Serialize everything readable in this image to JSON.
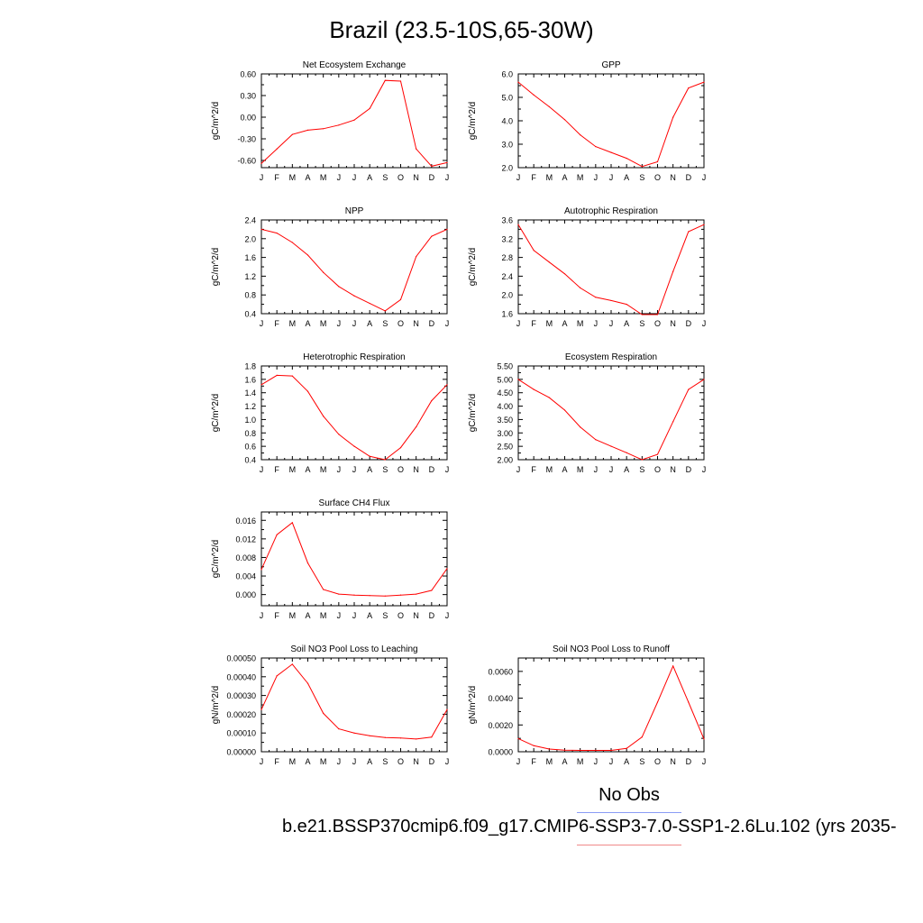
{
  "figure": {
    "title": "Brazil (23.5-10S,65-30W)",
    "legend_obs": "No Obs",
    "case_label": "b.e21.BSSP370cmip6.f09_g17.CMIP6-SSP3-7.0-SSP1-2.6Lu.102 (yrs 2035-",
    "obs_color": "#8a9cf5",
    "case_color": "#f08a8a",
    "series_color": "#ff0000"
  },
  "chart_data": [
    {
      "type": "line",
      "title": "Net Ecosystem Exchange",
      "ylabel": "gC/m^2/d",
      "x": [
        "J",
        "F",
        "M",
        "A",
        "M",
        "J",
        "J",
        "A",
        "S",
        "O",
        "N",
        "D",
        "J"
      ],
      "ylim": [
        -0.7,
        0.6
      ],
      "yticks": [
        0.6,
        0.3,
        0.0,
        -0.3,
        -0.6
      ],
      "ytick_labels": [
        "0.60",
        "0.30",
        "0.00",
        "-0.30",
        "-0.60"
      ],
      "values": [
        -0.64,
        -0.44,
        -0.24,
        -0.18,
        -0.16,
        -0.11,
        -0.04,
        0.12,
        0.51,
        0.5,
        -0.44,
        -0.68,
        -0.63
      ]
    },
    {
      "type": "line",
      "title": "GPP",
      "ylabel": "gC/m^2/d",
      "x": [
        "J",
        "F",
        "M",
        "A",
        "M",
        "J",
        "J",
        "A",
        "S",
        "O",
        "N",
        "D",
        "J"
      ],
      "ylim": [
        2.0,
        6.0
      ],
      "yticks": [
        6.0,
        5.0,
        4.0,
        3.0,
        2.0
      ],
      "ytick_labels": [
        "6.0",
        "5.0",
        "4.0",
        "3.0",
        "2.0"
      ],
      "values": [
        5.65,
        5.1,
        4.6,
        4.05,
        3.4,
        2.9,
        2.65,
        2.4,
        2.05,
        2.25,
        4.15,
        5.4,
        5.65
      ]
    },
    {
      "type": "line",
      "title": "NPP",
      "ylabel": "gC/m^2/d",
      "x": [
        "J",
        "F",
        "M",
        "A",
        "M",
        "J",
        "J",
        "A",
        "S",
        "O",
        "N",
        "D",
        "J"
      ],
      "ylim": [
        0.4,
        2.4
      ],
      "yticks": [
        2.4,
        2.0,
        1.6,
        1.2,
        0.8,
        0.4
      ],
      "ytick_labels": [
        "2.4",
        "2.0",
        "1.6",
        "1.2",
        "0.8",
        "0.4"
      ],
      "values": [
        2.2,
        2.12,
        1.92,
        1.65,
        1.28,
        0.98,
        0.78,
        0.62,
        0.46,
        0.7,
        1.62,
        2.05,
        2.2
      ]
    },
    {
      "type": "line",
      "title": "Autotrophic Respiration",
      "ylabel": "gC/m^2/d",
      "x": [
        "J",
        "F",
        "M",
        "A",
        "M",
        "J",
        "J",
        "A",
        "S",
        "O",
        "N",
        "D",
        "J"
      ],
      "ylim": [
        1.6,
        3.6
      ],
      "yticks": [
        3.6,
        3.2,
        2.8,
        2.4,
        2.0,
        1.6
      ],
      "ytick_labels": [
        "3.6",
        "3.2",
        "2.8",
        "2.4",
        "2.0",
        "1.6"
      ],
      "values": [
        3.5,
        2.95,
        2.7,
        2.45,
        2.15,
        1.95,
        1.88,
        1.8,
        1.58,
        1.58,
        2.5,
        3.35,
        3.5
      ]
    },
    {
      "type": "line",
      "title": "Heterotrophic Respiration",
      "ylabel": "gC/m^2/d",
      "x": [
        "J",
        "F",
        "M",
        "A",
        "M",
        "J",
        "J",
        "A",
        "S",
        "O",
        "N",
        "D",
        "J"
      ],
      "ylim": [
        0.4,
        1.8
      ],
      "yticks": [
        1.8,
        1.6,
        1.4,
        1.2,
        1.0,
        0.8,
        0.6,
        0.4
      ],
      "ytick_labels": [
        "1.8",
        "1.6",
        "1.4",
        "1.2",
        "1.0",
        "0.8",
        "0.6",
        "0.4"
      ],
      "values": [
        1.52,
        1.66,
        1.65,
        1.42,
        1.05,
        0.78,
        0.6,
        0.45,
        0.4,
        0.58,
        0.89,
        1.28,
        1.52
      ]
    },
    {
      "type": "line",
      "title": "Ecosystem Respiration",
      "ylabel": "gC/m^2/d",
      "x": [
        "J",
        "F",
        "M",
        "A",
        "M",
        "J",
        "J",
        "A",
        "S",
        "O",
        "N",
        "D",
        "J"
      ],
      "ylim": [
        2.0,
        5.5
      ],
      "yticks": [
        5.5,
        5.0,
        4.5,
        4.0,
        3.5,
        3.0,
        2.5,
        2.0
      ],
      "ytick_labels": [
        "5.50",
        "5.00",
        "4.50",
        "4.00",
        "3.50",
        "3.00",
        "2.50",
        "2.00"
      ],
      "values": [
        5.0,
        4.62,
        4.32,
        3.85,
        3.22,
        2.75,
        2.5,
        2.26,
        2.0,
        2.2,
        3.42,
        4.62,
        5.0
      ]
    },
    {
      "type": "line",
      "title": "Surface CH4 Flux",
      "ylabel": "gC/m^2/d",
      "x": [
        "J",
        "F",
        "M",
        "A",
        "M",
        "J",
        "J",
        "A",
        "S",
        "O",
        "N",
        "D",
        "J"
      ],
      "ylim": [
        -0.0024,
        0.0178
      ],
      "yticks": [
        0.016,
        0.012,
        0.008,
        0.004,
        0.0
      ],
      "ytick_labels": [
        "0.016",
        "0.012",
        "0.008",
        "0.004",
        "0.000"
      ],
      "values": [
        0.0054,
        0.0129,
        0.0155,
        0.0068,
        0.0011,
        0.0001,
        -0.0001,
        -0.0002,
        -0.0003,
        -0.0001,
        0.0001,
        0.0009,
        0.0056
      ]
    },
    {
      "type": "line",
      "title": "Soil NO3 Pool Loss to Leaching",
      "ylabel": "gN/m^2/d",
      "x": [
        "J",
        "F",
        "M",
        "A",
        "M",
        "J",
        "J",
        "A",
        "S",
        "O",
        "N",
        "D",
        "J"
      ],
      "ylim": [
        0.0,
        0.0005
      ],
      "yticks": [
        0.0005,
        0.0004,
        0.0003,
        0.0002,
        0.0001,
        0.0
      ],
      "ytick_labels": [
        "0.00050",
        "0.00040",
        "0.00030",
        "0.00020",
        "0.00010",
        "0.00000"
      ],
      "values": [
        0.000225,
        0.000405,
        0.000467,
        0.000365,
        0.000205,
        0.000122,
        0.0001,
        8.5e-05,
        7.6e-05,
        7.3e-05,
        6.8e-05,
        7.8e-05,
        0.000225
      ]
    },
    {
      "type": "line",
      "title": "Soil NO3 Pool Loss to Runoff",
      "ylabel": "gN/m^2/d",
      "x": [
        "J",
        "F",
        "M",
        "A",
        "M",
        "J",
        "J",
        "A",
        "S",
        "O",
        "N",
        "D",
        "J"
      ],
      "ylim": [
        0.0,
        0.007
      ],
      "yticks": [
        0.006,
        0.004,
        0.002,
        0.0
      ],
      "ytick_labels": [
        "0.0060",
        "0.0040",
        "0.0020",
        "0.0000"
      ],
      "values": [
        0.00098,
        0.00045,
        0.0002,
        0.00012,
        0.0001,
        0.0001,
        0.0001,
        0.00025,
        0.0011,
        0.0037,
        0.0064,
        0.0037,
        0.00095
      ]
    }
  ]
}
